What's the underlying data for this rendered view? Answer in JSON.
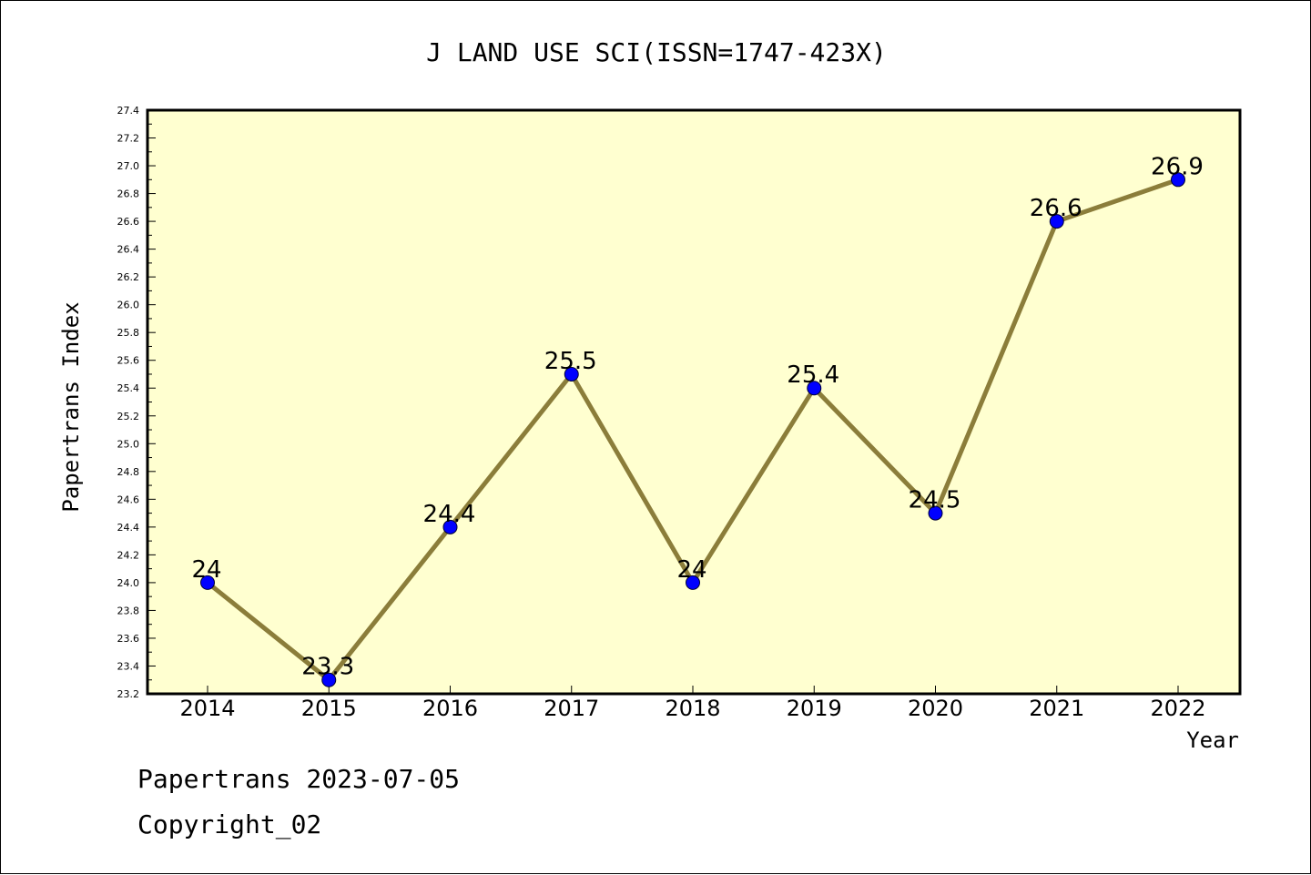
{
  "chart_data": {
    "type": "line",
    "title": "J LAND USE SCI(ISSN=1747-423X)",
    "xlabel": "Year",
    "ylabel": "Papertrans Index",
    "categories": [
      "2014",
      "2015",
      "2016",
      "2017",
      "2018",
      "2019",
      "2020",
      "2021",
      "2022"
    ],
    "series": [
      {
        "values": [
          24,
          23.3,
          24.4,
          25.5,
          24,
          25.4,
          24.5,
          26.6,
          26.9
        ],
        "data_labels": [
          "24",
          "23.3",
          "24.4",
          "25.5",
          "24",
          "25.4",
          "24.5",
          "26.6",
          "26.9"
        ]
      }
    ],
    "ylim": [
      23.2,
      27.4
    ],
    "yticks": [
      "23.2",
      "23.4",
      "23.6",
      "23.8",
      "24.0",
      "24.2",
      "24.4",
      "24.6",
      "24.8",
      "25.0",
      "25.2",
      "25.4",
      "25.6",
      "25.8",
      "26.0",
      "26.2",
      "26.4",
      "26.6",
      "26.8",
      "27.0",
      "27.2",
      "27.4"
    ],
    "grid": false,
    "legend": "none",
    "colors": {
      "plot_background": "#ffffd0",
      "line": "#8b7d3a",
      "marker": "#0000ff"
    }
  },
  "footer": {
    "line1": "Papertrans 2023-07-05",
    "line2": "Copyright_02"
  }
}
